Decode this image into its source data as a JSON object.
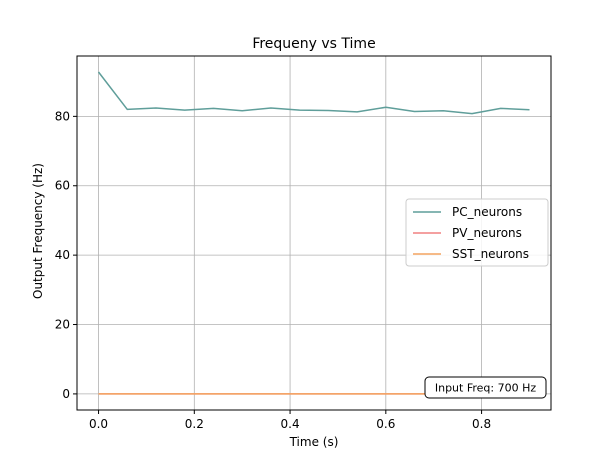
{
  "chart_data": {
    "type": "line",
    "title": "Frequeny vs Time",
    "xlabel": "Time (s)",
    "ylabel": "Output Frequency (Hz)",
    "xlim": [
      -0.045,
      0.945
    ],
    "ylim": [
      -4.64,
      97.4
    ],
    "xticks": [
      0.0,
      0.2,
      0.4,
      0.6,
      0.8
    ],
    "xtick_labels": [
      "0.0",
      "0.2",
      "0.4",
      "0.6",
      "0.8"
    ],
    "yticks": [
      0,
      20,
      40,
      60,
      80
    ],
    "ytick_labels": [
      "0",
      "20",
      "40",
      "60",
      "80"
    ],
    "grid": true,
    "legend_position": "center-right",
    "x": [
      0.0,
      0.06,
      0.12,
      0.18,
      0.24,
      0.3,
      0.36,
      0.42,
      0.48,
      0.54,
      0.6,
      0.66,
      0.72,
      0.78,
      0.84,
      0.9
    ],
    "series": [
      {
        "name": "PC_neurons",
        "color": "#5f9e9a",
        "values": [
          92.8,
          82.0,
          82.4,
          81.8,
          82.3,
          81.6,
          82.4,
          81.8,
          81.7,
          81.3,
          82.6,
          81.4,
          81.6,
          80.8,
          82.3,
          81.9
        ]
      },
      {
        "name": "PV_neurons",
        "color": "#f08080",
        "values": [
          0,
          0,
          0,
          0,
          0,
          0,
          0,
          0,
          0,
          0,
          0,
          0,
          0,
          0,
          0,
          0
        ]
      },
      {
        "name": "SST_neurons",
        "color": "#f4a460",
        "values": [
          0,
          0,
          0,
          0,
          0,
          0,
          0,
          0,
          0,
          0,
          0,
          0,
          0,
          0,
          0,
          0
        ]
      }
    ],
    "annotation": {
      "text": "Input Freq: 700 Hz",
      "position": "bottom-right"
    }
  }
}
